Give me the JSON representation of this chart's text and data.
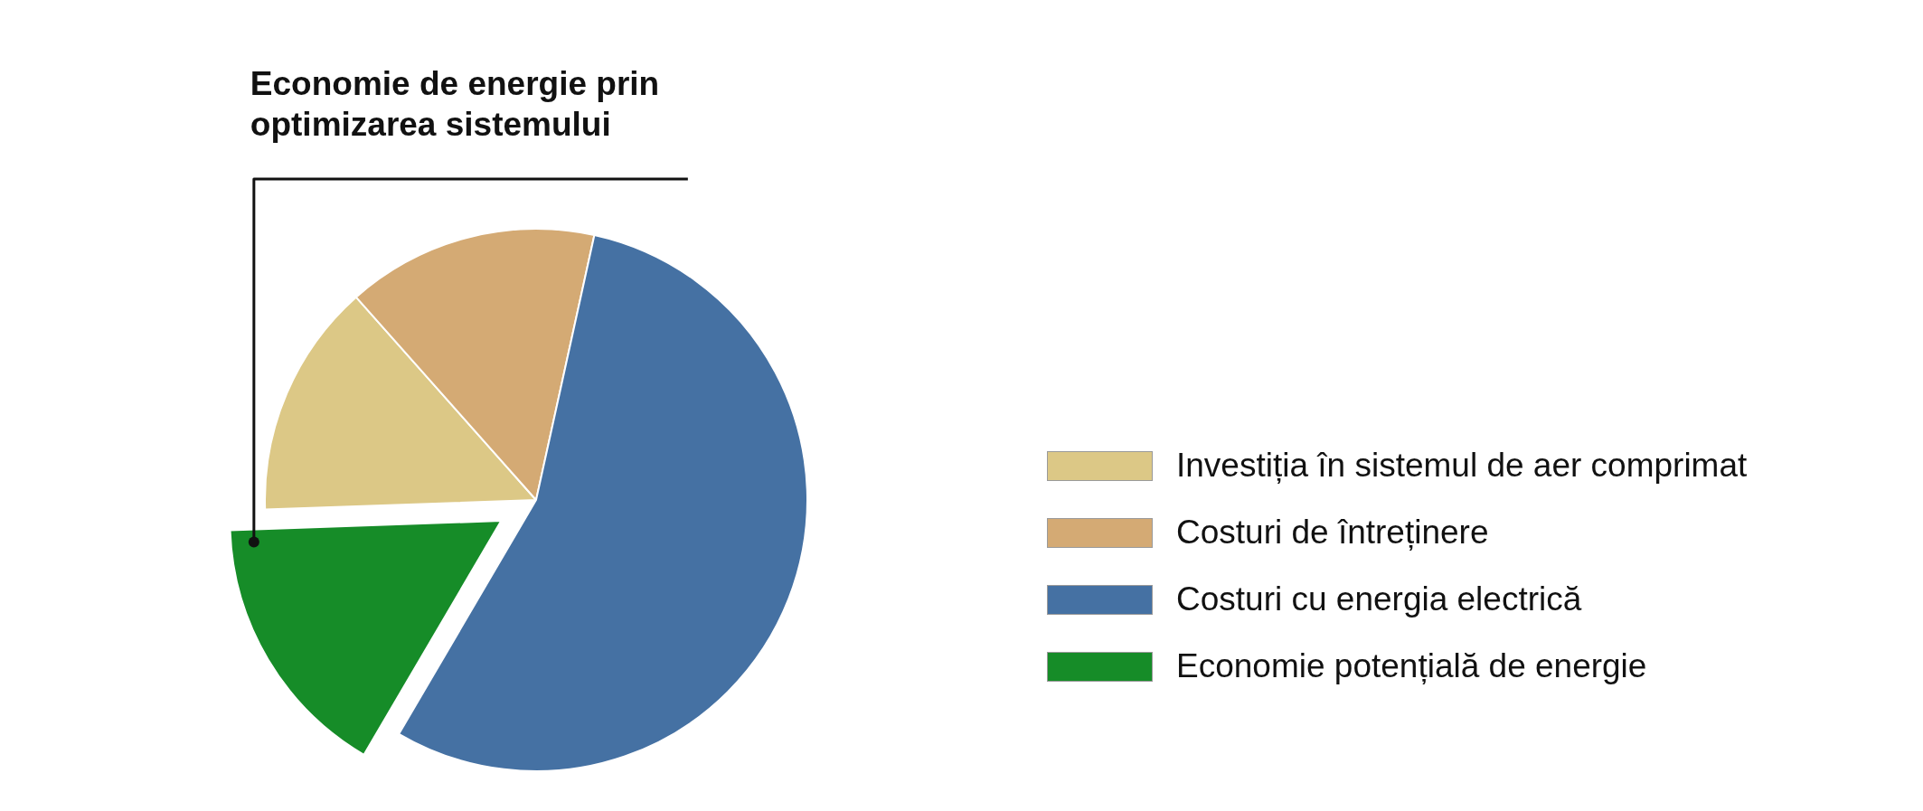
{
  "chart_data": {
    "type": "pie",
    "categories": [
      "Investiția în sistemul de aer comprimat",
      "Costuri de întreținere",
      "Costuri cu energia electrică",
      "Economie potențială de energie"
    ],
    "values": [
      14,
      15,
      55,
      16
    ],
    "colors": [
      "#dcc886",
      "#d4aa74",
      "#4571a3",
      "#168c28"
    ],
    "legend": "right",
    "annotations": [
      "Economie de energie prin optimizarea sistemului"
    ]
  }
}
